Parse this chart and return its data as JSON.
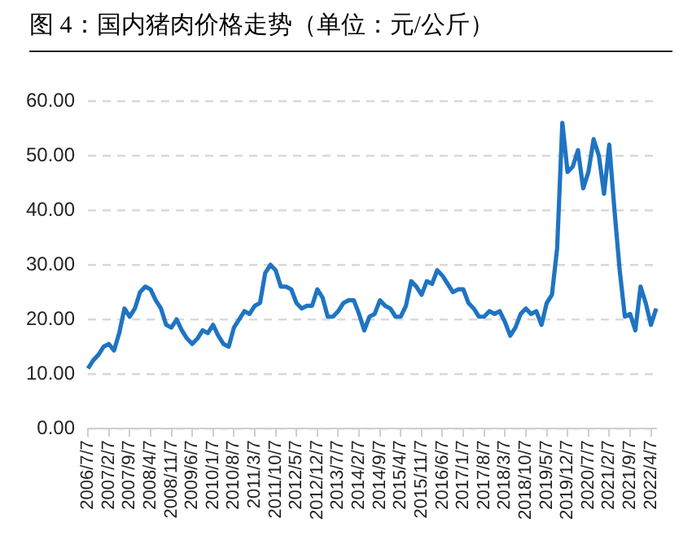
{
  "chart_data": {
    "type": "line",
    "title": "图 4：国内猪肉价格走势（单位：元/公斤）",
    "categories": [
      "2006/7/7",
      null,
      null,
      null,
      "2007/2/7",
      null,
      null,
      null,
      "2007/9/7",
      null,
      null,
      null,
      "2008/4/7",
      null,
      null,
      null,
      "2008/11/7",
      null,
      null,
      null,
      "2009/6/7",
      null,
      null,
      null,
      "2010/1/7",
      null,
      null,
      null,
      "2010/8/7",
      null,
      null,
      null,
      "2011/3/7",
      null,
      null,
      null,
      "2011/10/7",
      null,
      null,
      null,
      "2012/5/7",
      null,
      null,
      null,
      "2012/12/7",
      null,
      null,
      null,
      "2013/7/7",
      null,
      null,
      null,
      "2014/2/7",
      null,
      null,
      null,
      "2014/9/7",
      null,
      null,
      null,
      "2015/4/7",
      null,
      null,
      null,
      "2015/11/7",
      null,
      null,
      null,
      "2016/6/7",
      null,
      null,
      null,
      "2017/1/7",
      null,
      null,
      null,
      "2017/8/7",
      null,
      null,
      null,
      "2018/3/7",
      null,
      null,
      null,
      "2018/10/7",
      null,
      null,
      null,
      "2019/5/7",
      null,
      null,
      null,
      "2019/12/7",
      null,
      null,
      null,
      "2020/7/7",
      null,
      null,
      null,
      "2021/2/7",
      null,
      null,
      null,
      "2021/9/7",
      null,
      null,
      null,
      "2022/4/7",
      null
    ],
    "series": [
      {
        "color": "#1f74c2",
        "values": [
          11,
          12.5,
          13.5,
          15,
          15.5,
          14.3,
          17.5,
          22,
          20.5,
          22,
          25,
          26,
          25.5,
          23.5,
          22,
          19,
          18.5,
          20,
          18,
          16.5,
          15.5,
          16.5,
          18,
          17.5,
          19,
          17,
          15.5,
          15,
          18.5,
          20,
          21.5,
          21,
          22.5,
          23,
          28.5,
          30,
          29,
          26,
          26,
          25.5,
          23,
          22,
          22.5,
          22.5,
          25.5,
          24,
          20.5,
          20.5,
          21.5,
          23,
          23.5,
          23.5,
          21,
          18,
          20.5,
          21,
          23.5,
          22.5,
          22,
          20.5,
          20.5,
          22.5,
          27,
          26,
          24.5,
          27,
          26.5,
          29,
          28,
          26.5,
          25,
          25.5,
          25.5,
          23,
          22,
          20.5,
          20.5,
          21.5,
          21,
          21.5,
          19.5,
          17,
          18.5,
          21,
          22,
          21,
          21.5,
          19,
          23,
          24.5,
          33,
          56,
          47,
          48,
          51,
          44,
          47,
          53,
          50,
          43,
          52,
          40,
          29,
          20.5,
          21,
          18,
          26,
          23,
          19,
          22
        ]
      }
    ],
    "ylim": [
      0,
      60
    ],
    "yticks": [
      {
        "value": 0,
        "label": "0.00"
      },
      {
        "value": 10,
        "label": "10.00"
      },
      {
        "value": 20,
        "label": "20.00"
      },
      {
        "value": 30,
        "label": "30.00"
      },
      {
        "value": 40,
        "label": "40.00"
      },
      {
        "value": 50,
        "label": "50.00"
      },
      {
        "value": 60,
        "label": "60.00"
      }
    ],
    "grid": "y",
    "legend": false,
    "marker": "none",
    "line_style": "solid"
  }
}
